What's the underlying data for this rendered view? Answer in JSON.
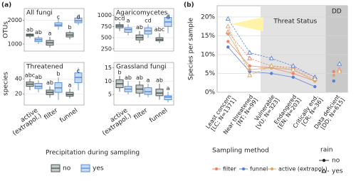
{
  "chart_data": [
    {
      "type": "box",
      "label": "(a)",
      "ylabels": [
        "OTUs",
        "species"
      ],
      "categories": [
        [
          "active",
          "(extrapol.)"
        ],
        [
          "filter"
        ],
        [
          "funnel"
        ]
      ],
      "legend_title": "Precipitation during sampling",
      "series": [
        {
          "name": "no",
          "color": "#3e4c4c"
        },
        {
          "name": "yes",
          "color": "#4a86d8"
        }
      ],
      "facets": [
        {
          "title": "All fungi",
          "ylim": [
            700,
            2500
          ],
          "yticks": [
            1000,
            2000
          ],
          "boxes": [
            [
              [
                1250,
                1330,
                1380,
                1420,
                1450
              ],
              [
                850,
                950,
                1050,
                1150,
                1300
              ],
              [
                1200,
                1300,
                1380,
                1480,
                1550
              ]
            ],
            [
              [
                1000,
                1100,
                1180,
                1250,
                1350
              ],
              [
                1600,
                1750,
                1800,
                1900,
                2100
              ],
              [
                1800,
                1900,
                1980,
                2100,
                2250
              ]
            ]
          ],
          "letters": [
            [
              "ab",
              "a",
              "b"
            ],
            [
              "ab",
              "c",
              "d"
            ]
          ]
        },
        {
          "title": "Agaricomycetes",
          "ylim": [
            200,
            1150
          ],
          "yticks": [
            250,
            500,
            750,
            1000
          ],
          "boxes": [
            [
              [
                650,
                720,
                760,
                790,
                850
              ],
              [
                380,
                450,
                500,
                560,
                650
              ],
              [
                380,
                430,
                460,
                500,
                600
              ]
            ],
            [
              [
                550,
                620,
                680,
                720,
                800
              ],
              [
                500,
                580,
                650,
                720,
                800
              ],
              [
                600,
                750,
                850,
                950,
                1050
              ]
            ]
          ],
          "letters": [
            [
              "bcd",
              "ab",
              "abc"
            ],
            [
              "a",
              "cd",
              "d"
            ]
          ]
        },
        {
          "title": "Threatened",
          "ylim": [
            5,
            62
          ],
          "yticks": [
            20,
            40
          ],
          "boxes": [
            [
              [
                25,
                30,
                33,
                36,
                40
              ],
              [
                15,
                19,
                22,
                25,
                30
              ],
              [
                14,
                17,
                19,
                22,
                27
              ]
            ],
            [
              [
                22,
                27,
                30,
                34,
                38
              ],
              [
                12,
                22,
                28,
                35,
                42
              ],
              [
                25,
                35,
                42,
                48,
                55
              ]
            ]
          ],
          "letters": [
            [
              "abc",
              "ab",
              "a"
            ],
            [
              "ab",
              "b",
              "c"
            ]
          ]
        },
        {
          "title": "Grassland fungi",
          "ylim": [
            1,
            17
          ],
          "yticks": [
            5,
            10,
            15
          ],
          "boxes": [
            [
              [
                6,
                7.5,
                9,
                10.5,
                12
              ],
              [
                4,
                5.5,
                7,
                8.5,
                10
              ],
              [
                3,
                4.5,
                5.5,
                7,
                9
              ]
            ],
            [
              [
                5,
                6,
                7,
                8,
                10
              ],
              [
                4,
                5,
                6,
                7.5,
                9
              ],
              [
                2,
                3,
                4,
                4.5,
                6
              ]
            ]
          ],
          "letters": [
            [
              "b",
              "ab",
              "ab"
            ],
            [
              "ab",
              "a",
              "a"
            ]
          ]
        }
      ]
    },
    {
      "type": "line",
      "label": "(b)",
      "ylabel": "Species per sample",
      "categories": [
        [
          "Least concern",
          "[LC; N=1371]"
        ],
        [
          "Near threatened",
          "[NT; N=99]"
        ],
        [
          "Vulnerable",
          "[VU; N=323]"
        ],
        [
          "Endangered",
          "[EN; N=203]"
        ],
        [
          "Critically end.",
          "[CR; N=36]"
        ],
        [
          "Data deficient",
          "[DD; N=615]"
        ]
      ],
      "annotations": [
        "Threat Status",
        "DD"
      ],
      "ylim": [
        0,
        23
      ],
      "yticks": [
        {
          "value": 0,
          "label": "0%"
        },
        {
          "value": 5,
          "label": "5%"
        },
        {
          "value": 10,
          "label": "10%"
        },
        {
          "value": 15,
          "label": "15%"
        },
        {
          "value": 20,
          "label": "20%"
        }
      ],
      "grid": true,
      "legend_title": "Sampling method",
      "methods": [
        {
          "name": "filter",
          "color": "#e8866e"
        },
        {
          "name": "funnel",
          "color": "#5a80d6"
        },
        {
          "name": "active (extrapol.)",
          "color": "#d8a66e"
        }
      ],
      "rain_title": "rain",
      "rain_levels": [
        {
          "name": "no",
          "marker": "circle",
          "dash": false
        },
        {
          "name": "yes",
          "marker": "triangle",
          "dash": true
        }
      ],
      "series": [
        {
          "method": "filter",
          "rain": "no",
          "values": [
            13.5,
            7,
            6.5,
            5,
            3,
            5.5
          ]
        },
        {
          "method": "filter",
          "rain": "yes",
          "values": [
            16,
            9,
            7,
            6.5,
            4,
            6
          ]
        },
        {
          "method": "funnel",
          "rain": "no",
          "values": [
            12,
            5.5,
            5,
            4,
            1.5,
            3
          ]
        },
        {
          "method": "funnel",
          "rain": "yes",
          "values": [
            19.5,
            10.5,
            9,
            7,
            4,
            7.5
          ]
        },
        {
          "method": "active (extrapol.)",
          "rain": "no",
          "values": [
            15.5,
            6,
            6.5,
            6,
            3,
            4.5
          ]
        },
        {
          "method": "active (extrapol.)",
          "rain": "yes",
          "values": [
            17.5,
            4.5,
            7,
            6,
            3.5,
            5.5
          ]
        }
      ]
    }
  ]
}
